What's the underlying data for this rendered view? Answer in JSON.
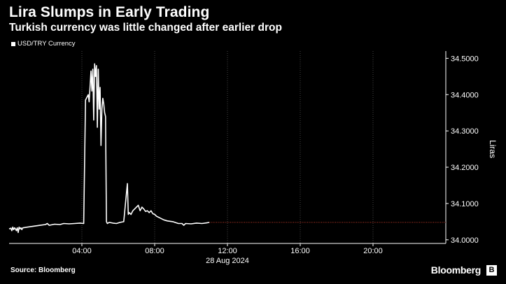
{
  "title": "Lira Slumps in Early Trading",
  "subtitle": "Turkish currency was little changed after earlier drop",
  "legend": {
    "label": "USD/TRY Currency"
  },
  "footer": {
    "source": "Source: Bloomberg",
    "brand": "Bloomberg",
    "brand_badge": "B"
  },
  "colors": {
    "background": "#000000",
    "line": "#ffffff",
    "grid": "#444444",
    "reference_line": "#c0392b",
    "text": "#ffffff"
  },
  "chart_data": {
    "type": "line",
    "title": "Lira Slumps in Early Trading",
    "subtitle": "Turkish currency was little changed after earlier drop",
    "xlabel": "28 Aug 2024",
    "ylabel": "Liras",
    "x_unit": "hour of day",
    "xlim": [
      0,
      24
    ],
    "ylim": [
      33.99,
      34.52
    ],
    "x_ticks": [
      {
        "value": 4,
        "label": "04:00"
      },
      {
        "value": 8,
        "label": "08:00"
      },
      {
        "value": 12,
        "label": "12:00"
      },
      {
        "value": 16,
        "label": "16:00"
      },
      {
        "value": 20,
        "label": "20:00"
      }
    ],
    "y_ticks": [
      {
        "value": 34.0,
        "label": "34.0000"
      },
      {
        "value": 34.1,
        "label": "34.1000"
      },
      {
        "value": 34.2,
        "label": "34.2000"
      },
      {
        "value": 34.3,
        "label": "34.3000"
      },
      {
        "value": 34.4,
        "label": "34.4000"
      },
      {
        "value": 34.5,
        "label": "34.5000"
      }
    ],
    "grid": "vertical dotted",
    "axis_position": "right",
    "legend_position": "top-left",
    "reference_line": {
      "value": 34.048,
      "style": "dotted",
      "from_x": 11.0,
      "to_x": 24
    },
    "series": [
      {
        "name": "USD/TRY Currency",
        "x": [
          0.0,
          0.1,
          0.15,
          0.2,
          0.25,
          0.3,
          0.35,
          0.4,
          0.45,
          0.5,
          0.55,
          0.6,
          0.65,
          0.7,
          0.75,
          1.0,
          1.3,
          1.7,
          2.0,
          2.1,
          2.2,
          2.5,
          2.8,
          3.0,
          3.3,
          3.6,
          3.9,
          4.1,
          4.2,
          4.25,
          4.3,
          4.35,
          4.4,
          4.5,
          4.55,
          4.6,
          4.65,
          4.7,
          4.75,
          4.8,
          4.85,
          4.9,
          4.95,
          5.0,
          5.05,
          5.1,
          5.15,
          5.2,
          5.25,
          5.3,
          5.35,
          5.4,
          5.5,
          5.7,
          5.9,
          6.1,
          6.3,
          6.5,
          6.55,
          6.6,
          6.7,
          6.8,
          6.9,
          7.0,
          7.1,
          7.2,
          7.3,
          7.4,
          7.5,
          7.6,
          7.7,
          7.8,
          7.9,
          8.0,
          8.1,
          8.3,
          8.5,
          8.7,
          9.0,
          9.3,
          9.5,
          9.6,
          9.7,
          10.0,
          10.3,
          10.6,
          10.9,
          11.0
        ],
        "y": [
          34.03,
          34.032,
          34.025,
          34.035,
          34.028,
          34.033,
          34.03,
          34.025,
          34.033,
          34.02,
          34.035,
          34.03,
          34.033,
          34.028,
          34.033,
          34.035,
          34.037,
          34.04,
          34.042,
          34.045,
          34.04,
          34.043,
          34.042,
          34.045,
          34.044,
          34.045,
          34.046,
          34.045,
          34.385,
          34.39,
          34.395,
          34.4,
          34.38,
          34.465,
          34.41,
          34.47,
          34.33,
          34.485,
          34.45,
          34.48,
          34.31,
          34.47,
          34.36,
          34.42,
          34.26,
          34.36,
          34.39,
          34.375,
          34.35,
          34.34,
          34.05,
          34.045,
          34.048,
          34.046,
          34.045,
          34.048,
          34.05,
          34.155,
          34.07,
          34.075,
          34.07,
          34.08,
          34.085,
          34.09,
          34.095,
          34.08,
          34.09,
          34.085,
          34.078,
          34.08,
          34.075,
          34.08,
          34.072,
          34.07,
          34.065,
          34.06,
          34.055,
          34.052,
          34.05,
          34.045,
          34.045,
          34.04,
          34.045,
          34.044,
          34.046,
          34.045,
          34.047,
          34.048
        ]
      }
    ]
  }
}
